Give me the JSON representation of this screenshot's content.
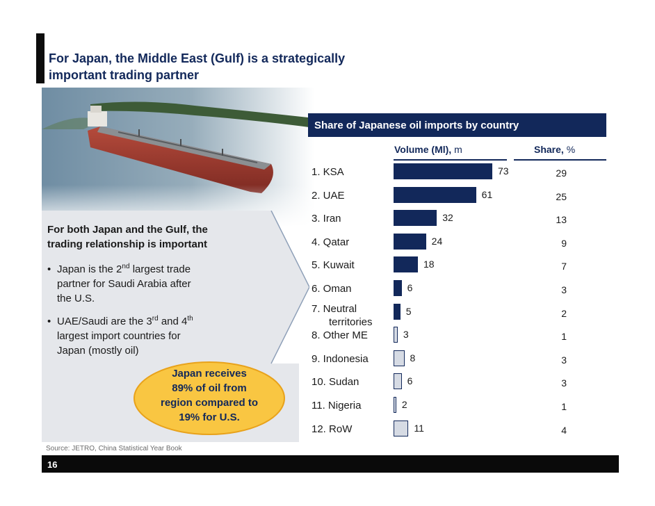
{
  "title_line1": "For Japan, the Middle East (Gulf) is a strategically",
  "title_line2": "important trading partner",
  "panel": {
    "heading_line1": "For both Japan and the Gulf, the",
    "heading_line2": "trading relationship is important",
    "bullet1": {
      "a": "Japan is the 2",
      "sup": "nd",
      "b": " largest trade",
      "line2": "partner for Saudi Arabia after",
      "line3": "the U.S."
    },
    "bullet2": {
      "a": "UAE/Saudi are the 3",
      "sup1": "rd",
      "mid": " and 4",
      "sup2": "th",
      "line2": "largest import countries for",
      "line3": "Japan (mostly oil)"
    },
    "bullet_symbol": "•"
  },
  "callout": {
    "line1": "Japan receives",
    "line2": "89% of oil from",
    "line3": "region compared to",
    "line4": "19% for U.S."
  },
  "source": "Source:  JETRO, China Statistical Year Book",
  "page_number": "16",
  "colors": {
    "navy": "#12285a",
    "bar_dark": "#12285a",
    "bar_light": "#d6dbe4",
    "callout_fill": "#f9c642",
    "callout_stroke": "#e8a21b",
    "panel_gray": "#e5e7eb"
  },
  "chart_data": {
    "type": "bar",
    "title": "Share of Japanese oil imports by country",
    "volume_label_bold": "Volume (Ml),",
    "volume_label_unit": " m",
    "share_label_bold": "Share,",
    "share_label_unit": " %",
    "rows": [
      {
        "label": "1.  KSA",
        "volume": 73,
        "share": 29,
        "gulf": true
      },
      {
        "label": "2.  UAE",
        "volume": 61,
        "share": 25,
        "gulf": true
      },
      {
        "label": "3.  Iran",
        "volume": 32,
        "share": 13,
        "gulf": true
      },
      {
        "label": "4.  Qatar",
        "volume": 24,
        "share": 9,
        "gulf": true
      },
      {
        "label": "5.  Kuwait",
        "volume": 18,
        "share": 7,
        "gulf": true
      },
      {
        "label": "6.  Oman",
        "volume": 6,
        "share": 3,
        "gulf": true
      },
      {
        "label": "7.  Neutral",
        "label2": "territories",
        "volume": 5,
        "share": 2,
        "gulf": true
      },
      {
        "label": "8.  Other ME",
        "volume": 3,
        "share": 1,
        "gulf": false
      },
      {
        "label": "9.  Indonesia",
        "volume": 8,
        "share": 3,
        "gulf": false
      },
      {
        "label": "10. Sudan",
        "volume": 6,
        "share": 3,
        "gulf": false
      },
      {
        "label": "11. Nigeria",
        "volume": 2,
        "share": 1,
        "gulf": false
      },
      {
        "label": "12. RoW",
        "volume": 11,
        "share": 4,
        "gulf": false
      }
    ]
  }
}
